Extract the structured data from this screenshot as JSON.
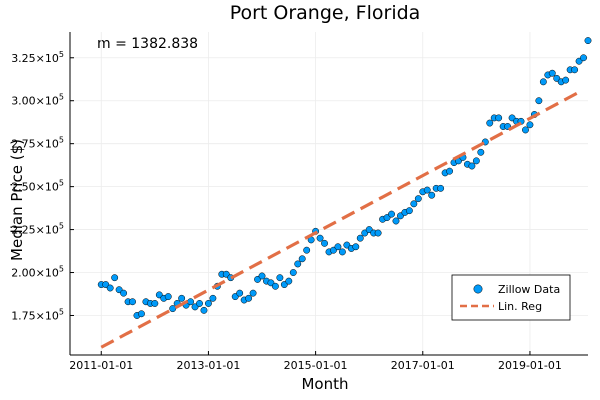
{
  "chart_data": {
    "type": "scatter",
    "title": "Port Orange, Florida",
    "xlabel": "Month",
    "ylabel": "Median Price ($)",
    "annotation": "m = 1382.838",
    "grid": true,
    "legend_position": "bottom-right",
    "xlim": [
      "2010-06-01",
      "2020-02-01"
    ],
    "ylim": [
      152000,
      340000
    ],
    "x_ticks": [
      "2011-01-01",
      "2013-01-01",
      "2015-01-01",
      "2017-01-01",
      "2019-01-01"
    ],
    "y_ticks": [
      {
        "value": 175000,
        "mantissa": "1.75",
        "exp": "5"
      },
      {
        "value": 200000,
        "mantissa": "2.00",
        "exp": "5"
      },
      {
        "value": 225000,
        "mantissa": "2.25",
        "exp": "5"
      },
      {
        "value": 250000,
        "mantissa": "2.50",
        "exp": "5"
      },
      {
        "value": 275000,
        "mantissa": "2.75",
        "exp": "5"
      },
      {
        "value": 300000,
        "mantissa": "3.00",
        "exp": "5"
      },
      {
        "value": 325000,
        "mantissa": "3.25",
        "exp": "5"
      }
    ],
    "series": [
      {
        "name": "Zillow Data",
        "type": "scatter",
        "color": "#009af9",
        "x_start": "2011-01-01",
        "x_step": "1 month",
        "values": [
          193000,
          193000,
          191000,
          197000,
          190000,
          188000,
          183000,
          183000,
          175000,
          176000,
          183000,
          182000,
          182000,
          187000,
          185000,
          186000,
          179000,
          182000,
          185000,
          181000,
          183000,
          180000,
          182000,
          178000,
          182000,
          185000,
          192000,
          199000,
          199000,
          197000,
          186000,
          188000,
          184000,
          185000,
          188000,
          196000,
          198000,
          195000,
          194000,
          192000,
          197000,
          193000,
          195000,
          200000,
          205000,
          208000,
          213000,
          219000,
          224000,
          220000,
          217000,
          212000,
          213000,
          215000,
          212000,
          216000,
          214000,
          215000,
          220000,
          223000,
          225000,
          223000,
          223000,
          231000,
          232000,
          234000,
          230000,
          233000,
          235000,
          236000,
          240000,
          243000,
          247000,
          248000,
          245000,
          249000,
          249000,
          258000,
          259000,
          264000,
          265000,
          267000,
          263000,
          262000,
          265000,
          270000,
          276000,
          287000,
          290000,
          290000,
          285000,
          285000,
          290000,
          288000,
          288000,
          283000,
          286000,
          292000,
          300000,
          311000,
          315000,
          316000,
          313000,
          311000,
          312000,
          318000,
          318000,
          323000,
          325000,
          335000
        ]
      },
      {
        "name": "Lin. Reg",
        "type": "line",
        "style": "dashed",
        "color": "#e26f46",
        "x": [
          "2011-01-01",
          "2019-12-01"
        ],
        "y": [
          156500,
          305000
        ]
      }
    ]
  }
}
